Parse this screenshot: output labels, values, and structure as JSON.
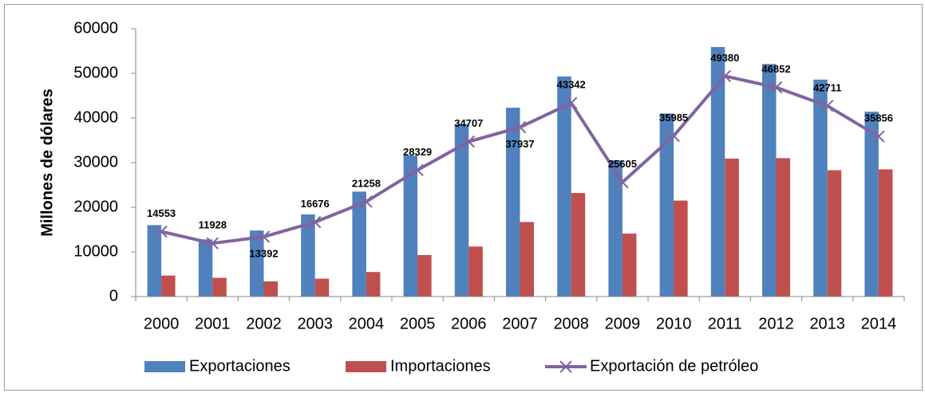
{
  "chart_data": {
    "type": "bar-line",
    "y_label": "Millones de dólares",
    "categories": [
      "2000",
      "2001",
      "2002",
      "2003",
      "2004",
      "2005",
      "2006",
      "2007",
      "2008",
      "2009",
      "2010",
      "2011",
      "2012",
      "2013",
      "2014"
    ],
    "series": [
      {
        "name": "Exportaciones",
        "type": "bar",
        "color": "#4f81bd",
        "values": [
          16000,
          12800,
          14800,
          18400,
          23500,
          31600,
          38600,
          42300,
          49300,
          30500,
          41000,
          55900,
          52100,
          48600,
          41400
        ]
      },
      {
        "name": "Importaciones",
        "type": "bar",
        "color": "#c0504d",
        "values": [
          4700,
          4200,
          3400,
          4000,
          5500,
          9300,
          11200,
          16700,
          23200,
          14100,
          21500,
          30900,
          31000,
          28300,
          28500
        ]
      },
      {
        "name": "Exportación de petróleo",
        "type": "line",
        "color": "#8064a2",
        "values": [
          14553,
          11928,
          13392,
          16676,
          21258,
          28329,
          34707,
          37937,
          43342,
          25605,
          35985,
          49380,
          46852,
          42711,
          35856
        ],
        "show_labels": true
      }
    ],
    "ylim": [
      0,
      60000
    ],
    "yticks": [
      0,
      10000,
      20000,
      30000,
      40000,
      50000,
      60000
    ],
    "grid": false,
    "legend": "bottom"
  }
}
